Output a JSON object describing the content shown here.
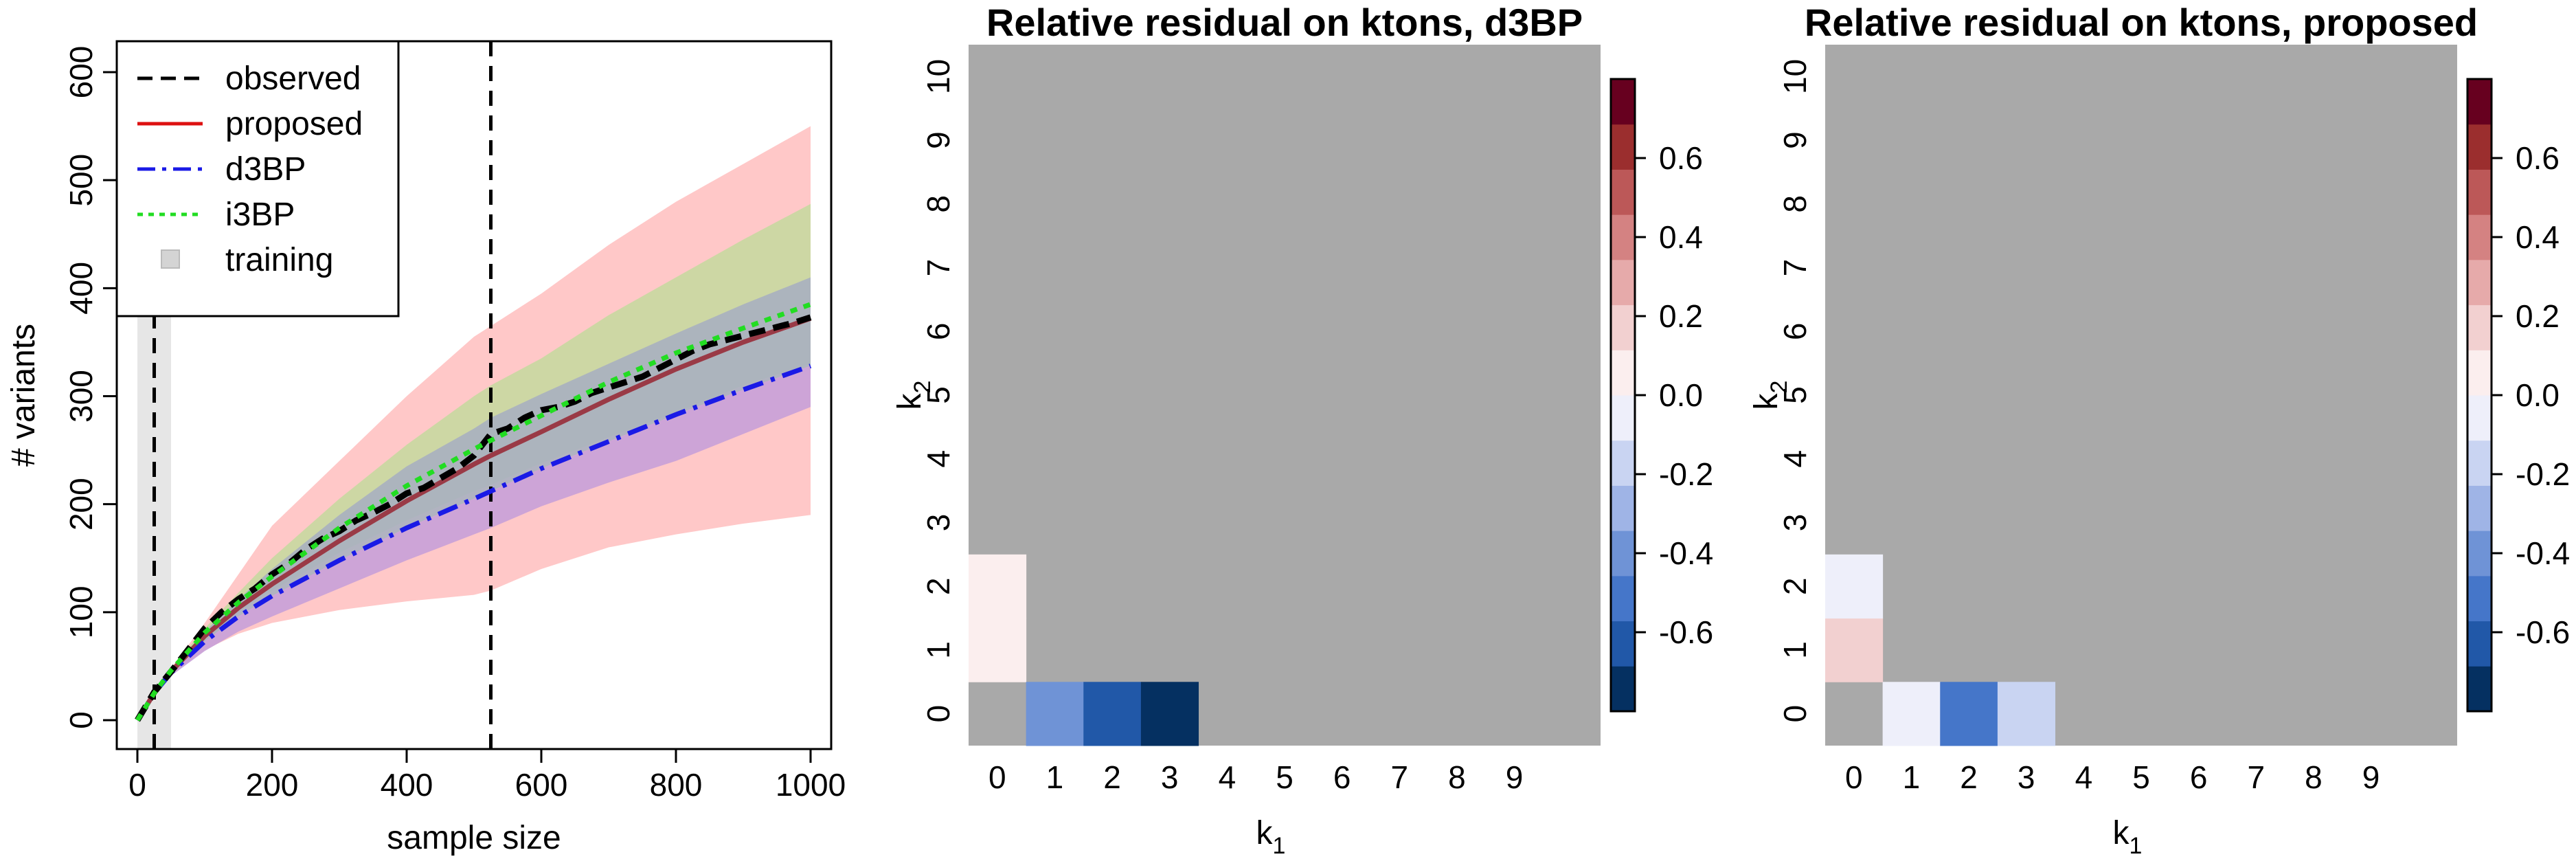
{
  "chart_data": [
    {
      "type": "line",
      "title": "",
      "xlabel": "sample size",
      "ylabel": "# variants",
      "xlim": [
        0,
        1000
      ],
      "ylim": [
        0,
        600
      ],
      "xticks": [
        "0",
        "200",
        "400",
        "600",
        "800",
        "1000"
      ],
      "yticks": [
        "0",
        "100",
        "200",
        "300",
        "400",
        "500",
        "600"
      ],
      "legend": {
        "placement": "top-left",
        "entries": [
          "observed",
          "proposed",
          "d3BP",
          "i3BP",
          "training"
        ]
      },
      "vertical_lines": [
        25,
        525
      ],
      "training_band": [
        0,
        50
      ],
      "colors": {
        "observed": "#000000",
        "proposed": "#dd1111",
        "proposed_line": "#9a3a46",
        "d3BP": "#1a1ae6",
        "i3BP": "#22dd22",
        "proposed_band": "#ffc8c8",
        "i3BP_band": "#c8d8a0",
        "d3BP_band_upper": "#a8b0c0",
        "d3BP_band_lower": "#c8a0d8",
        "training_band": "#e6e6e6"
      },
      "series": [
        {
          "name": "observed",
          "x": [
            0,
            25,
            50,
            75,
            100,
            125,
            150,
            175,
            200,
            225,
            250,
            275,
            300,
            325,
            350,
            375,
            400,
            425,
            450,
            475,
            500,
            525,
            550,
            575,
            600,
            625,
            650,
            675,
            700,
            725,
            750,
            775,
            800,
            825,
            850,
            875,
            900,
            925,
            950,
            975,
            1000
          ],
          "y": [
            0,
            26,
            45,
            65,
            85,
            100,
            112,
            122,
            135,
            145,
            158,
            168,
            175,
            185,
            192,
            200,
            210,
            215,
            224,
            233,
            245,
            265,
            270,
            280,
            287,
            290,
            295,
            303,
            308,
            313,
            318,
            326,
            334,
            342,
            348,
            352,
            356,
            360,
            364,
            368,
            373
          ]
        },
        {
          "name": "proposed",
          "x": [
            0,
            25,
            50,
            100,
            150,
            200,
            300,
            400,
            500,
            525,
            600,
            700,
            800,
            900,
            1000
          ],
          "y": [
            0,
            25,
            45,
            78,
            104,
            126,
            166,
            203,
            237,
            245,
            267,
            297,
            325,
            350,
            372
          ],
          "band_upper": [
            0,
            26,
            48,
            90,
            135,
            180,
            240,
            300,
            355,
            365,
            395,
            440,
            480,
            515,
            550
          ],
          "band_lower": [
            0,
            24,
            42,
            65,
            80,
            90,
            102,
            110,
            116,
            120,
            140,
            160,
            172,
            182,
            190
          ]
        },
        {
          "name": "d3BP",
          "x": [
            0,
            25,
            50,
            100,
            150,
            200,
            300,
            400,
            500,
            525,
            600,
            700,
            800,
            900,
            1000
          ],
          "y": [
            0,
            25,
            44,
            73,
            96,
            115,
            148,
            178,
            205,
            212,
            233,
            258,
            283,
            306,
            328
          ],
          "band_upper": [
            0,
            26,
            47,
            82,
            112,
            140,
            190,
            235,
            270,
            280,
            302,
            330,
            358,
            385,
            410
          ],
          "band_lower": [
            0,
            24,
            41,
            64,
            82,
            96,
            122,
            148,
            172,
            178,
            198,
            220,
            240,
            265,
            290
          ]
        },
        {
          "name": "i3BP",
          "x": [
            0,
            25,
            50,
            100,
            150,
            200,
            300,
            400,
            500,
            525,
            600,
            700,
            800,
            900,
            1000
          ],
          "y": [
            0,
            25,
            46,
            81,
            109,
            133,
            178,
            217,
            251,
            259,
            282,
            313,
            340,
            363,
            385
          ],
          "band_upper": [
            0,
            26,
            48,
            85,
            118,
            150,
            205,
            255,
            300,
            310,
            335,
            375,
            410,
            445,
            478
          ],
          "band_lower": [
            0,
            24,
            44,
            75,
            100,
            120,
            155,
            185,
            212,
            218,
            238,
            262,
            285,
            310,
            330
          ]
        }
      ]
    },
    {
      "type": "heatmap",
      "title": "Relative residual on ktons, d3BP",
      "xlabel": "k1",
      "ylabel": "k2",
      "x_categories": [
        "0",
        "1",
        "2",
        "3",
        "4",
        "5",
        "6",
        "7",
        "8",
        "9"
      ],
      "y_categories": [
        "0",
        "1",
        "2",
        "3",
        "4",
        "5",
        "6",
        "7",
        "8",
        "9",
        "10"
      ],
      "colorbar_ticks": [
        "-0.6",
        "-0.4",
        "-0.2",
        "0.0",
        "0.2",
        "0.4",
        "0.6"
      ],
      "colorbar_range": [
        -0.8,
        0.8
      ],
      "na_color": "#a9a9a9",
      "cells": [
        {
          "k1": 0,
          "k2": 1,
          "value": 0.02
        },
        {
          "k1": 0,
          "k2": 2,
          "value": 0.02
        },
        {
          "k1": 1,
          "k2": 0,
          "value": -0.45
        },
        {
          "k1": 2,
          "k2": 0,
          "value": -0.62
        },
        {
          "k1": 3,
          "k2": 0,
          "value": -0.78
        }
      ]
    },
    {
      "type": "heatmap",
      "title": "Relative residual on ktons, proposed",
      "xlabel": "k1",
      "ylabel": "k2",
      "x_categories": [
        "0",
        "1",
        "2",
        "3",
        "4",
        "5",
        "6",
        "7",
        "8",
        "9"
      ],
      "y_categories": [
        "0",
        "1",
        "2",
        "3",
        "4",
        "5",
        "6",
        "7",
        "8",
        "9",
        "10"
      ],
      "colorbar_ticks": [
        "-0.6",
        "-0.4",
        "-0.2",
        "0.0",
        "0.2",
        "0.4",
        "0.6"
      ],
      "colorbar_range": [
        -0.8,
        0.8
      ],
      "na_color": "#a9a9a9",
      "cells": [
        {
          "k1": 0,
          "k2": 1,
          "value": 0.22
        },
        {
          "k1": 0,
          "k2": 2,
          "value": -0.05
        },
        {
          "k1": 1,
          "k2": 0,
          "value": -0.02
        },
        {
          "k1": 2,
          "k2": 0,
          "value": -0.48
        },
        {
          "k1": 3,
          "k2": 0,
          "value": -0.22
        }
      ]
    }
  ]
}
